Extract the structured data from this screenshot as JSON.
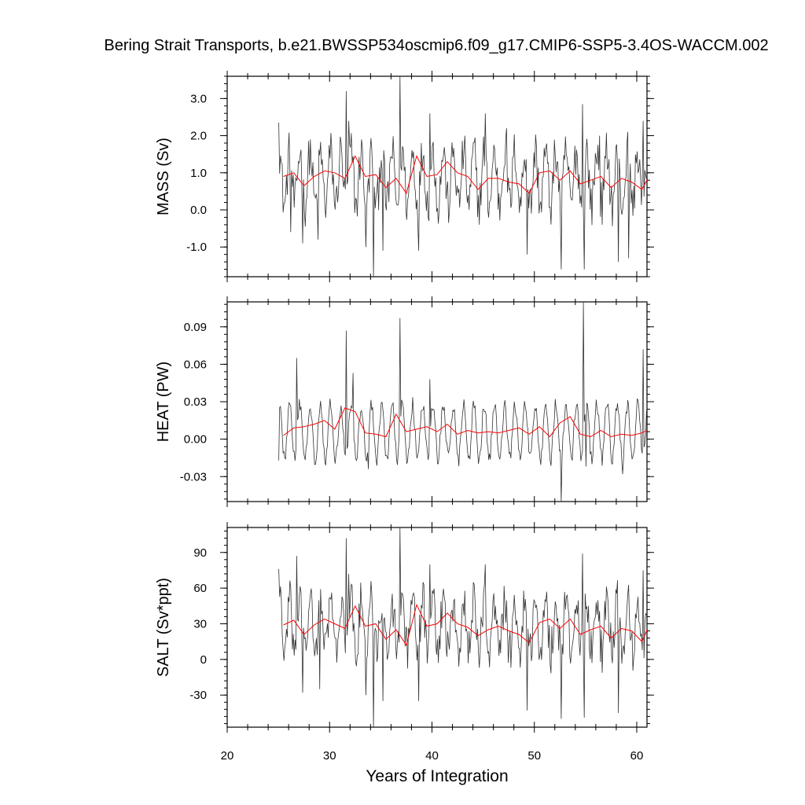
{
  "title": "Bering Strait Transports, b.e21.BWSSP534oscmip6.f09_g17.CMIP6-SSP5-3.4OS-WACCM.002",
  "chart_data": {
    "type": "line",
    "xlabel": "Years of Integration",
    "xlim": [
      20,
      61
    ],
    "xticks": [
      20,
      30,
      40,
      50,
      60
    ],
    "xtick_labels": [
      "20",
      "30",
      "40",
      "50",
      "60"
    ],
    "grid": false,
    "panels": [
      {
        "id": "mass",
        "ylabel": "MASS (Sv)",
        "ylim": [
          -1.8,
          3.6
        ],
        "yticks": [
          -1.0,
          0.0,
          1.0,
          2.0,
          3.0
        ],
        "ytick_labels": [
          "-1.0",
          "0.0",
          "1.0",
          "2.0",
          "3.0"
        ],
        "series": [
          {
            "role": "monthly",
            "color": "#333333",
            "x_start": 25.04,
            "x_step": 0.0833333,
            "mean": 0.85,
            "amp": 0.72,
            "noise": 0.6,
            "spikes": [
              [
                25.04,
                2.35
              ],
              [
                26.2,
                -0.6
              ],
              [
                27.4,
                -0.9
              ],
              [
                28.9,
                -0.8
              ],
              [
                31.6,
                3.2
              ],
              [
                31.9,
                2.4
              ],
              [
                33.5,
                -1.0
              ],
              [
                34.3,
                -1.8
              ],
              [
                35.2,
                -1.1
              ],
              [
                36.9,
                3.6
              ],
              [
                38.7,
                -1.1
              ],
              [
                39.8,
                2.6
              ],
              [
                45.2,
                2.6
              ],
              [
                47.3,
                2.2
              ],
              [
                49.3,
                -1.2
              ],
              [
                52.6,
                -1.6
              ],
              [
                54.7,
                2.85
              ],
              [
                54.9,
                -1.6
              ],
              [
                56.4,
                2.0
              ],
              [
                58.2,
                -1.4
              ],
              [
                59.2,
                -1.3
              ],
              [
                60.6,
                2.4
              ],
              [
                61.0,
                -0.7
              ]
            ]
          },
          {
            "role": "annual",
            "color": "#ff0000",
            "values": [
              0.9,
              1.0,
              0.65,
              0.9,
              1.05,
              1.0,
              0.85,
              1.45,
              0.9,
              0.95,
              0.6,
              0.85,
              0.45,
              1.45,
              0.9,
              0.95,
              1.3,
              1.0,
              0.9,
              0.55,
              0.85,
              0.85,
              0.75,
              0.7,
              0.45,
              1.0,
              1.05,
              0.8,
              1.05,
              0.7,
              0.8,
              0.9,
              0.6,
              0.85,
              0.75,
              0.55,
              1.05
            ]
          }
        ]
      },
      {
        "id": "heat",
        "ylabel": "HEAT (PW)",
        "ylim": [
          -0.05,
          0.11
        ],
        "yticks": [
          -0.03,
          0.0,
          0.03,
          0.06,
          0.09
        ],
        "ytick_labels": [
          "-0.03",
          "0.00",
          "0.03",
          "0.06",
          "0.09"
        ],
        "series": [
          {
            "role": "monthly",
            "color": "#333333",
            "x_start": 25.04,
            "x_step": 0.0833333,
            "mean": 0.006,
            "amp": 0.022,
            "noise": 0.006,
            "spikes": [
              [
                25.04,
                -0.017
              ],
              [
                26.8,
                0.065
              ],
              [
                31.6,
                0.087
              ],
              [
                32.3,
                0.053
              ],
              [
                33.8,
                -0.024
              ],
              [
                36.9,
                0.097
              ],
              [
                39.8,
                0.048
              ],
              [
                52.6,
                -0.05
              ],
              [
                54.8,
                0.11
              ],
              [
                55.0,
                -0.022
              ],
              [
                58.6,
                -0.028
              ],
              [
                60.6,
                0.072
              ],
              [
                61.0,
                -0.012
              ]
            ]
          },
          {
            "role": "annual",
            "color": "#ff0000",
            "values": [
              0.003,
              0.009,
              0.01,
              0.012,
              0.015,
              0.008,
              0.025,
              0.022,
              0.005,
              0.004,
              0.002,
              0.02,
              0.006,
              0.008,
              0.01,
              0.006,
              0.012,
              0.004,
              0.007,
              0.005,
              0.006,
              0.005,
              0.007,
              0.009,
              0.004,
              0.01,
              0.002,
              0.013,
              0.018,
              0.004,
              0.002,
              0.007,
              0.002,
              0.004,
              0.003,
              0.005,
              0.009
            ]
          }
        ]
      },
      {
        "id": "salt",
        "ylabel": "SALT (Sv*ppt)",
        "ylim": [
          -57,
          111
        ],
        "yticks": [
          -30,
          0,
          30,
          60,
          90
        ],
        "ytick_labels": [
          "-30",
          "0",
          "30",
          "60",
          "90"
        ],
        "series": [
          {
            "role": "monthly",
            "color": "#333333",
            "x_start": 25.04,
            "x_step": 0.0833333,
            "mean": 28,
            "amp": 22,
            "noise": 18,
            "spikes": [
              [
                25.04,
                76
              ],
              [
                26.8,
                87
              ],
              [
                27.4,
                -28
              ],
              [
                29.0,
                -25
              ],
              [
                31.6,
                102
              ],
              [
                31.9,
                72
              ],
              [
                33.5,
                -30
              ],
              [
                34.3,
                -57
              ],
              [
                35.2,
                -35
              ],
              [
                36.9,
                111
              ],
              [
                38.7,
                -35
              ],
              [
                39.8,
                80
              ],
              [
                45.2,
                80
              ],
              [
                49.3,
                -43
              ],
              [
                52.6,
                -50
              ],
              [
                54.7,
                89
              ],
              [
                54.9,
                -49
              ],
              [
                58.2,
                -45
              ],
              [
                60.6,
                75
              ],
              [
                61.0,
                -20
              ]
            ]
          },
          {
            "role": "annual",
            "color": "#ff0000",
            "values": [
              29,
              33,
              21,
              29,
              34,
              30,
              26,
              45,
              28,
              30,
              17,
              25,
              12,
              46,
              28,
              30,
              39,
              30,
              27,
              20,
              25,
              28,
              24,
              21,
              14,
              31,
              34,
              26,
              34,
              21,
              25,
              28,
              18,
              26,
              24,
              15,
              34
            ]
          }
        ]
      }
    ]
  }
}
